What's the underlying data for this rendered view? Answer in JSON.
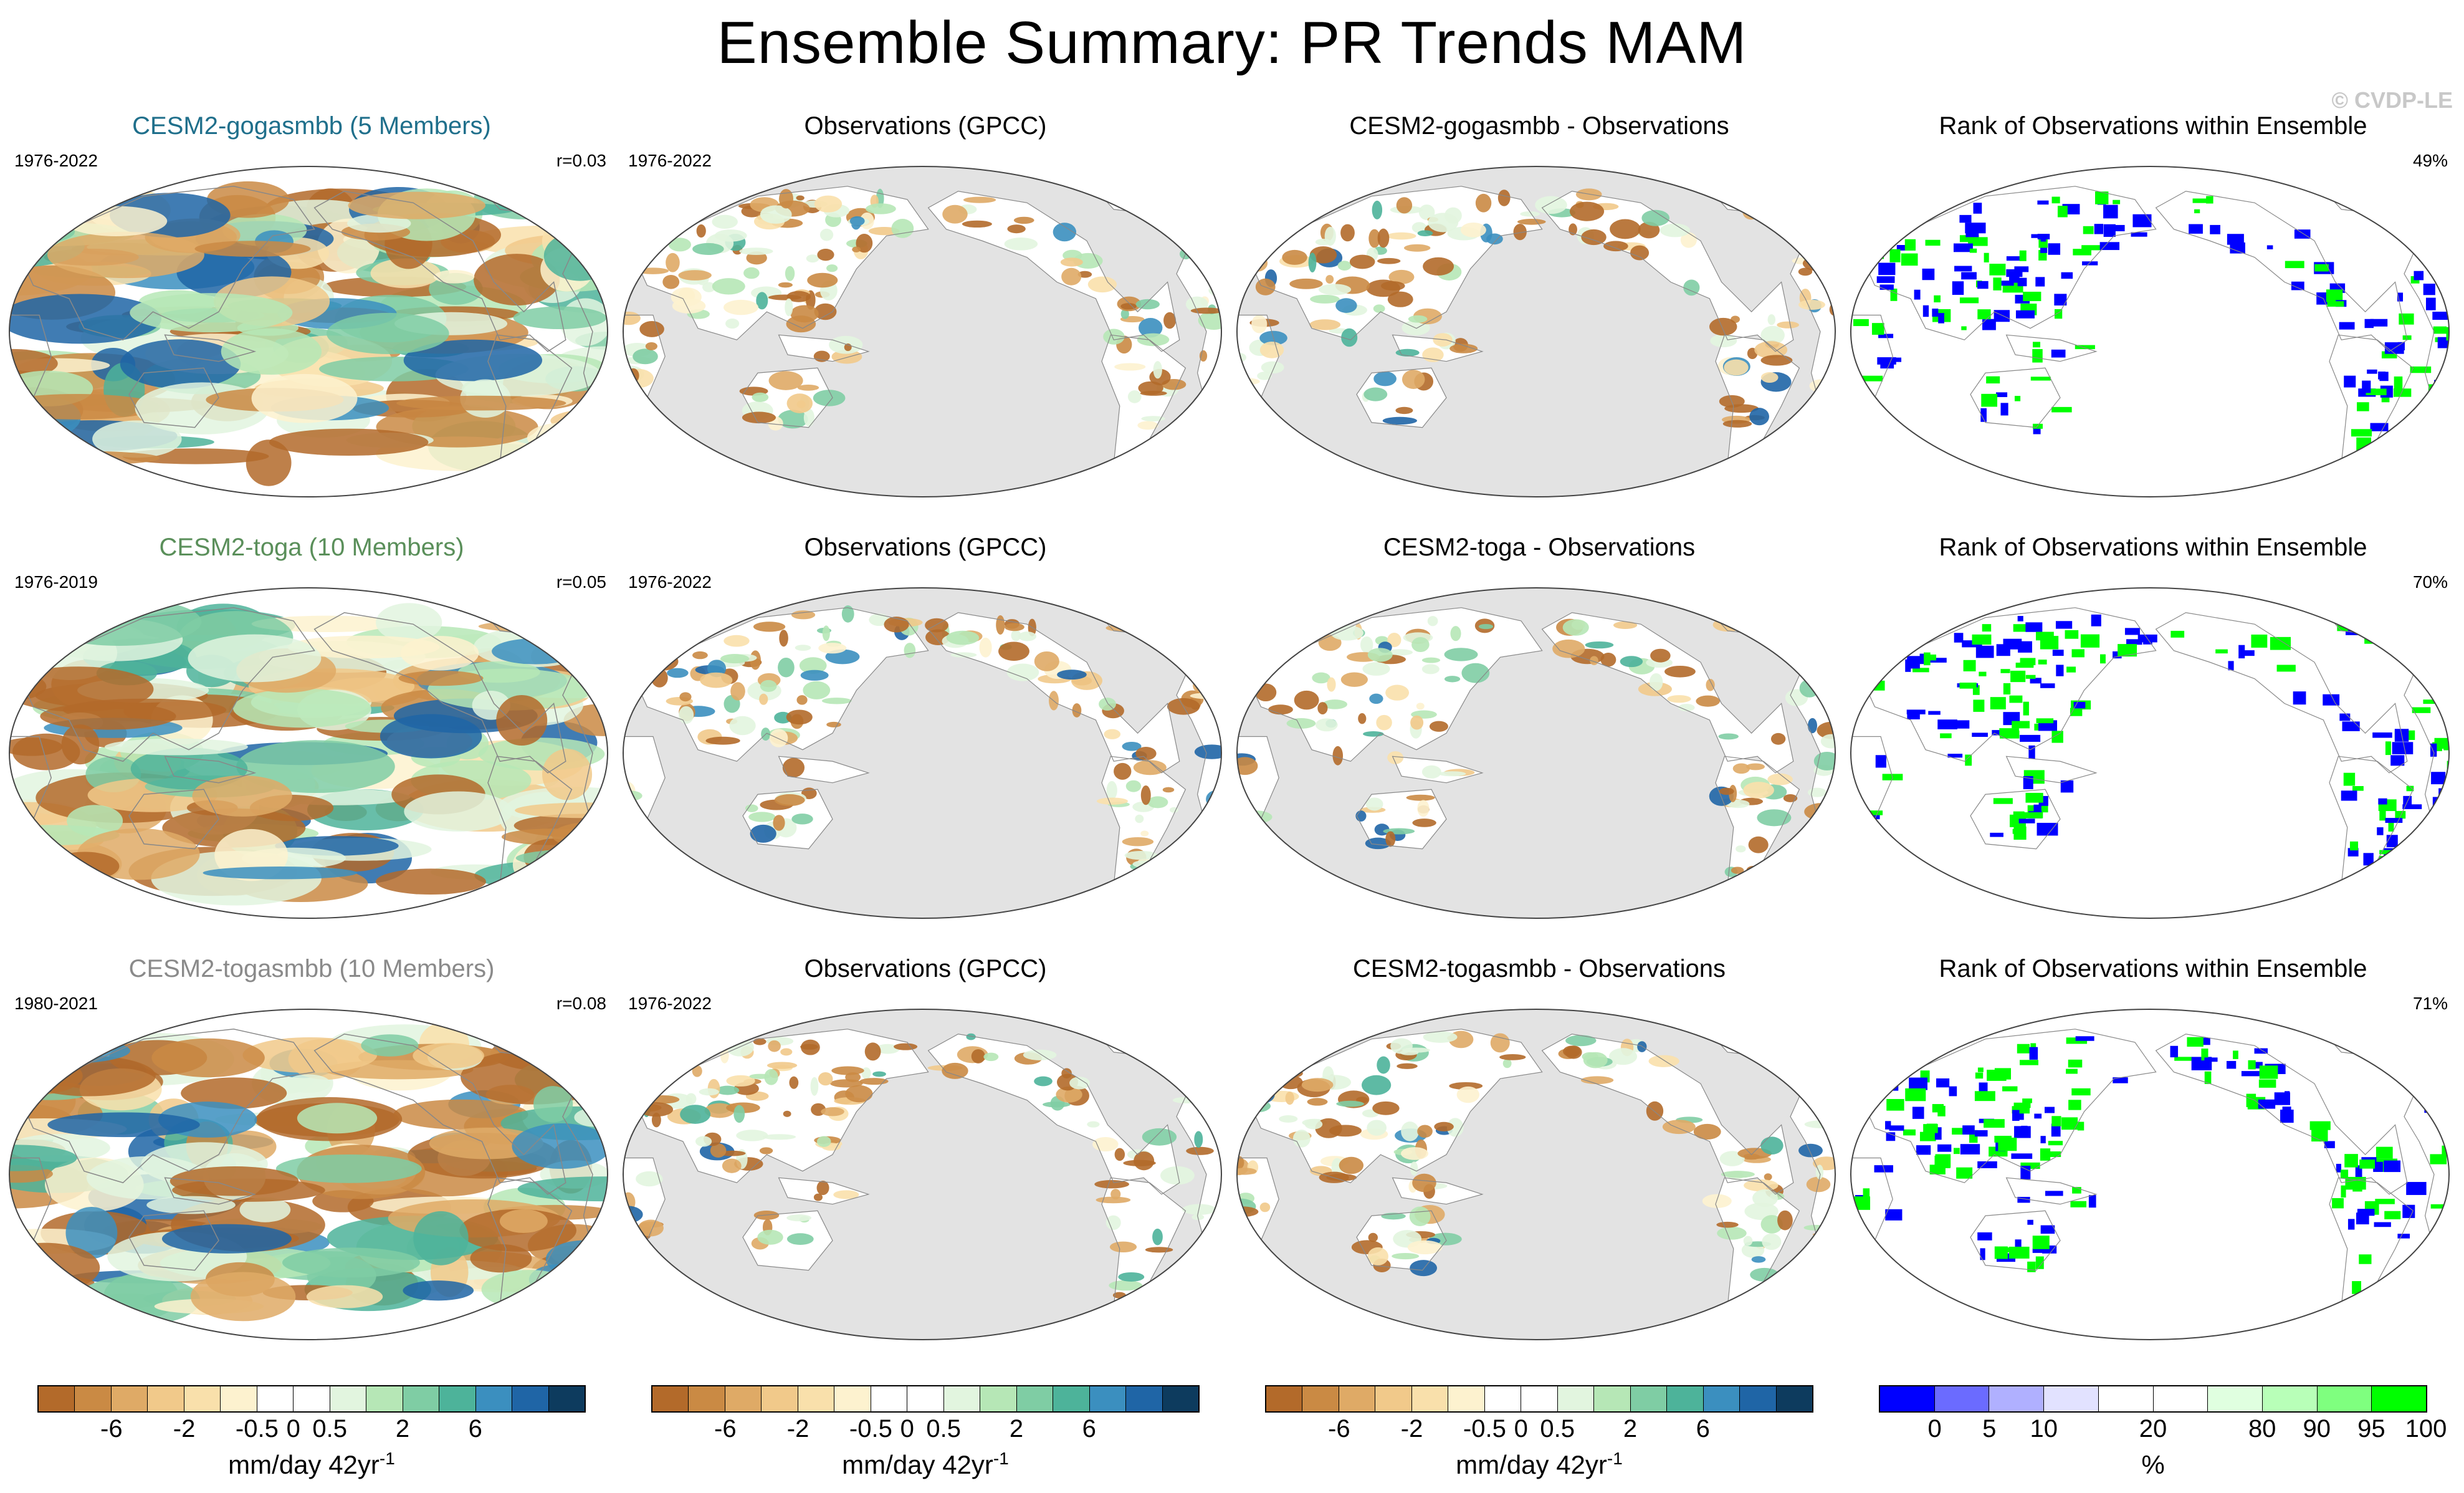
{
  "title": "Ensemble Summary: PR Trends MAM",
  "watermark": "© CVDP-LE",
  "colors": {
    "dry": [
      "#b36a2a",
      "#ca8a44",
      "#dfaa66",
      "#f1c98a",
      "#f9e0ab",
      "#fdf2cf"
    ],
    "wet": [
      "#e2f5df",
      "#b6e7b6",
      "#7fcda4",
      "#4db39a",
      "#3b8fbf",
      "#1f65a6"
    ],
    "land_gray": "#e3e3e3",
    "rank_blue": "#0000ff",
    "rank_green": "#00ff00"
  },
  "rows": [
    {
      "model": {
        "title": "CESM2-gogasmbb (5 Members)",
        "title_color": "#1f6f8b",
        "period": "1976-2022",
        "stat": "r=0.03"
      },
      "obs": {
        "title": "Observations (GPCC)",
        "period": "1976-2022"
      },
      "diff": {
        "title": "CESM2-gogasmbb - Observations"
      },
      "rank": {
        "title": "Rank of Observations within Ensemble",
        "stat": "49%"
      }
    },
    {
      "model": {
        "title": "CESM2-toga (10 Members)",
        "title_color": "#5a8f5a",
        "period": "1976-2019",
        "stat": "r=0.05"
      },
      "obs": {
        "title": "Observations (GPCC)",
        "period": "1976-2022"
      },
      "diff": {
        "title": "CESM2-toga - Observations"
      },
      "rank": {
        "title": "Rank of Observations within Ensemble",
        "stat": "70%"
      }
    },
    {
      "model": {
        "title": "CESM2-togasmbb (10 Members)",
        "title_color": "#8a8a8a",
        "period": "1980-2021",
        "stat": "r=0.08"
      },
      "obs": {
        "title": "Observations (GPCC)",
        "period": "1976-2022"
      },
      "diff": {
        "title": "CESM2-togasmbb - Observations"
      },
      "rank": {
        "title": "Rank of Observations within Ensemble",
        "stat": "71%"
      }
    }
  ],
  "colorbars": [
    {
      "id": "pr-model",
      "label": "mm/day 42yr",
      "label_exp": "-1",
      "colors": [
        "#b36a2a",
        "#ca8a44",
        "#dfaa66",
        "#f1c98a",
        "#f9e0ab",
        "#fdf2cf",
        "#ffffff",
        "#ffffff",
        "#e2f5df",
        "#b6e7b6",
        "#7fcda4",
        "#4db39a",
        "#3b8fbf",
        "#1f65a6",
        "#0d3b5e"
      ],
      "ticks": [
        {
          "label": "-6",
          "at": 2
        },
        {
          "label": "-2",
          "at": 4
        },
        {
          "label": "-0.5",
          "at": 6
        },
        {
          "label": "0",
          "at": 7
        },
        {
          "label": "0.5",
          "at": 8
        },
        {
          "label": "2",
          "at": 10
        },
        {
          "label": "6",
          "at": 12
        }
      ]
    },
    {
      "id": "pr-obs",
      "label": "mm/day 42yr",
      "label_exp": "-1",
      "colors": [
        "#b36a2a",
        "#ca8a44",
        "#dfaa66",
        "#f1c98a",
        "#f9e0ab",
        "#fdf2cf",
        "#ffffff",
        "#ffffff",
        "#e2f5df",
        "#b6e7b6",
        "#7fcda4",
        "#4db39a",
        "#3b8fbf",
        "#1f65a6",
        "#0d3b5e"
      ],
      "ticks": [
        {
          "label": "-6",
          "at": 2
        },
        {
          "label": "-2",
          "at": 4
        },
        {
          "label": "-0.5",
          "at": 6
        },
        {
          "label": "0",
          "at": 7
        },
        {
          "label": "0.5",
          "at": 8
        },
        {
          "label": "2",
          "at": 10
        },
        {
          "label": "6",
          "at": 12
        }
      ]
    },
    {
      "id": "pr-diff",
      "label": "mm/day 42yr",
      "label_exp": "-1",
      "colors": [
        "#b36a2a",
        "#ca8a44",
        "#dfaa66",
        "#f1c98a",
        "#f9e0ab",
        "#fdf2cf",
        "#ffffff",
        "#ffffff",
        "#e2f5df",
        "#b6e7b6",
        "#7fcda4",
        "#4db39a",
        "#3b8fbf",
        "#1f65a6",
        "#0d3b5e"
      ],
      "ticks": [
        {
          "label": "-6",
          "at": 2
        },
        {
          "label": "-2",
          "at": 4
        },
        {
          "label": "-0.5",
          "at": 6
        },
        {
          "label": "0",
          "at": 7
        },
        {
          "label": "0.5",
          "at": 8
        },
        {
          "label": "2",
          "at": 10
        },
        {
          "label": "6",
          "at": 12
        }
      ]
    },
    {
      "id": "rank",
      "label": "%",
      "label_exp": "",
      "colors": [
        "#0000ff",
        "#6b6bff",
        "#b0b0ff",
        "#e2e2ff",
        "#ffffff",
        "#ffffff",
        "#e0ffe0",
        "#b8ffb8",
        "#7fff7f",
        "#00ff00"
      ],
      "ticks": [
        {
          "label": "0",
          "at": 1
        },
        {
          "label": "5",
          "at": 2
        },
        {
          "label": "10",
          "at": 3
        },
        {
          "label": "20",
          "at": 5
        },
        {
          "label": "80",
          "at": 7
        },
        {
          "label": "90",
          "at": 8
        },
        {
          "label": "95",
          "at": 9
        },
        {
          "label": "100",
          "at": 10
        }
      ]
    }
  ]
}
